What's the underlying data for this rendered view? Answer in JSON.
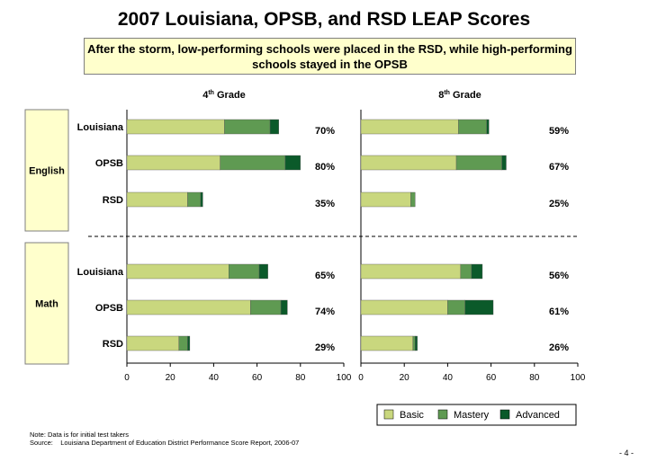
{
  "title": "2007 Louisiana, OPSB, and RSD LEAP Scores",
  "subtitle": "After the storm, low-performing schools were placed in the RSD, while high-performing schools stayed in the OPSB",
  "colors": {
    "basic": "#c9d77e",
    "mastery": "#5f9a52",
    "advanced": "#0b5a2a"
  },
  "chart_data": {
    "type": "bar",
    "orientation": "horizontal",
    "stacked": true,
    "panels": [
      {
        "title": "4",
        "superscript": "th",
        "title_suffix": " Grade"
      },
      {
        "title": "8",
        "superscript": "th",
        "title_suffix": " Grade"
      }
    ],
    "subjects": [
      "English",
      "Math"
    ],
    "categories": [
      "Louisiana",
      "OPSB",
      "RSD"
    ],
    "xlim": [
      0,
      100
    ],
    "xticks": [
      "0",
      "20",
      "40",
      "60",
      "80",
      "100"
    ],
    "legend": [
      "Basic",
      "Mastery",
      "Advanced"
    ],
    "legend_position": "bottom-right",
    "series_data": [
      {
        "panel": "4th Grade",
        "subject": "English",
        "category": "Louisiana",
        "basic": 45,
        "mastery": 21,
        "advanced": 4,
        "total_label": "70%"
      },
      {
        "panel": "4th Grade",
        "subject": "English",
        "category": "OPSB",
        "basic": 43,
        "mastery": 30,
        "advanced": 7,
        "total_label": "80%"
      },
      {
        "panel": "4th Grade",
        "subject": "English",
        "category": "RSD",
        "basic": 28,
        "mastery": 6,
        "advanced": 1,
        "total_label": "35%"
      },
      {
        "panel": "4th Grade",
        "subject": "Math",
        "category": "Louisiana",
        "basic": 47,
        "mastery": 14,
        "advanced": 4,
        "total_label": "65%"
      },
      {
        "panel": "4th Grade",
        "subject": "Math",
        "category": "OPSB",
        "basic": 57,
        "mastery": 14,
        "advanced": 3,
        "total_label": "74%"
      },
      {
        "panel": "4th Grade",
        "subject": "Math",
        "category": "RSD",
        "basic": 24,
        "mastery": 4,
        "advanced": 1,
        "total_label": "29%"
      },
      {
        "panel": "8th Grade",
        "subject": "English",
        "category": "Louisiana",
        "basic": 45,
        "mastery": 13,
        "advanced": 1,
        "total_label": "59%"
      },
      {
        "panel": "8th Grade",
        "subject": "English",
        "category": "OPSB",
        "basic": 44,
        "mastery": 21,
        "advanced": 2,
        "total_label": "67%"
      },
      {
        "panel": "8th Grade",
        "subject": "English",
        "category": "RSD",
        "basic": 23,
        "mastery": 2,
        "advanced": 0,
        "total_label": "25%"
      },
      {
        "panel": "8th Grade",
        "subject": "Math",
        "category": "Louisiana",
        "basic": 46,
        "mastery": 5,
        "advanced": 5,
        "total_label": "56%"
      },
      {
        "panel": "8th Grade",
        "subject": "Math",
        "category": "OPSB",
        "basic": 40,
        "mastery": 8,
        "advanced": 13,
        "total_label": "61%"
      },
      {
        "panel": "8th Grade",
        "subject": "Math",
        "category": "RSD",
        "basic": 24,
        "mastery": 1,
        "advanced": 1,
        "total_label": "26%"
      }
    ]
  },
  "note": "Note: Data is for initial test takers",
  "source_label": "Source:",
  "source_text": "Louisiana Department of Education District Performance Score Report, 2006-07",
  "page_number": "- 4 -"
}
